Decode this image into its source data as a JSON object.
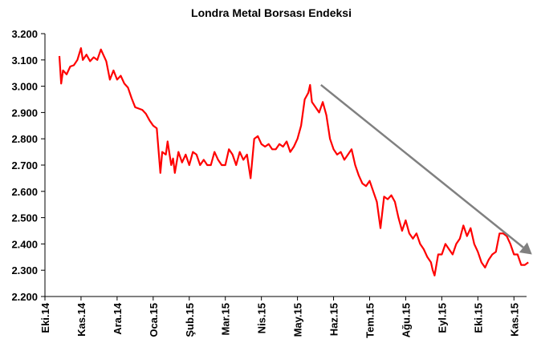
{
  "chart_data": {
    "type": "line",
    "title": "Londra Metal Borsası Endeksi",
    "xlabel": "",
    "ylabel": "",
    "ylim": [
      2200,
      3200
    ],
    "yticks": [
      "3.200",
      "3.100",
      "3.000",
      "2.900",
      "2.800",
      "2.700",
      "2.600",
      "2.500",
      "2.400",
      "2.300",
      "2.200"
    ],
    "ytick_values": [
      3200,
      3100,
      3000,
      2900,
      2800,
      2700,
      2600,
      2500,
      2400,
      2300,
      2200
    ],
    "x_categories": [
      "Eki.14",
      "Kas.14",
      "Ara.14",
      "Oca.15",
      "Şub.15",
      "Mar.15",
      "Nis.15",
      "May.15",
      "Haz.15",
      "Tem.15",
      "Ağu.15",
      "Eyl.15",
      "Eki.15",
      "Kas.15"
    ],
    "grid": false,
    "legend": "none",
    "series": [
      {
        "color": "#ff0000",
        "values": [
          [
            0.4,
            3115
          ],
          [
            0.45,
            3010
          ],
          [
            0.5,
            3060
          ],
          [
            0.6,
            3045
          ],
          [
            0.7,
            3075
          ],
          [
            0.8,
            3080
          ],
          [
            0.9,
            3100
          ],
          [
            1.0,
            3145
          ],
          [
            1.05,
            3100
          ],
          [
            1.15,
            3120
          ],
          [
            1.25,
            3095
          ],
          [
            1.35,
            3110
          ],
          [
            1.45,
            3100
          ],
          [
            1.55,
            3140
          ],
          [
            1.6,
            3125
          ],
          [
            1.7,
            3095
          ],
          [
            1.8,
            3025
          ],
          [
            1.9,
            3060
          ],
          [
            2.0,
            3025
          ],
          [
            2.1,
            3040
          ],
          [
            2.2,
            3010
          ],
          [
            2.3,
            2995
          ],
          [
            2.4,
            2955
          ],
          [
            2.5,
            2920
          ],
          [
            2.6,
            2915
          ],
          [
            2.7,
            2910
          ],
          [
            2.8,
            2895
          ],
          [
            2.9,
            2870
          ],
          [
            3.0,
            2850
          ],
          [
            3.1,
            2840
          ],
          [
            3.2,
            2670
          ],
          [
            3.25,
            2750
          ],
          [
            3.35,
            2740
          ],
          [
            3.4,
            2790
          ],
          [
            3.5,
            2700
          ],
          [
            3.55,
            2725
          ],
          [
            3.6,
            2670
          ],
          [
            3.7,
            2750
          ],
          [
            3.8,
            2710
          ],
          [
            3.9,
            2740
          ],
          [
            4.0,
            2700
          ],
          [
            4.1,
            2750
          ],
          [
            4.2,
            2740
          ],
          [
            4.3,
            2700
          ],
          [
            4.4,
            2720
          ],
          [
            4.5,
            2700
          ],
          [
            4.6,
            2700
          ],
          [
            4.7,
            2750
          ],
          [
            4.8,
            2720
          ],
          [
            4.9,
            2700
          ],
          [
            5.0,
            2700
          ],
          [
            5.1,
            2760
          ],
          [
            5.2,
            2740
          ],
          [
            5.3,
            2700
          ],
          [
            5.4,
            2750
          ],
          [
            5.5,
            2720
          ],
          [
            5.6,
            2740
          ],
          [
            5.7,
            2650
          ],
          [
            5.8,
            2800
          ],
          [
            5.9,
            2810
          ],
          [
            6.0,
            2780
          ],
          [
            6.1,
            2770
          ],
          [
            6.2,
            2780
          ],
          [
            6.3,
            2760
          ],
          [
            6.4,
            2760
          ],
          [
            6.5,
            2780
          ],
          [
            6.6,
            2770
          ],
          [
            6.7,
            2790
          ],
          [
            6.8,
            2750
          ],
          [
            6.9,
            2770
          ],
          [
            7.0,
            2800
          ],
          [
            7.1,
            2850
          ],
          [
            7.2,
            2950
          ],
          [
            7.3,
            2975
          ],
          [
            7.35,
            3005
          ],
          [
            7.4,
            2940
          ],
          [
            7.5,
            2920
          ],
          [
            7.6,
            2900
          ],
          [
            7.7,
            2940
          ],
          [
            7.8,
            2890
          ],
          [
            7.9,
            2800
          ],
          [
            8.0,
            2760
          ],
          [
            8.1,
            2740
          ],
          [
            8.2,
            2750
          ],
          [
            8.3,
            2720
          ],
          [
            8.4,
            2740
          ],
          [
            8.5,
            2760
          ],
          [
            8.6,
            2700
          ],
          [
            8.7,
            2660
          ],
          [
            8.8,
            2630
          ],
          [
            8.9,
            2620
          ],
          [
            9.0,
            2640
          ],
          [
            9.1,
            2600
          ],
          [
            9.2,
            2560
          ],
          [
            9.3,
            2460
          ],
          [
            9.4,
            2580
          ],
          [
            9.5,
            2570
          ],
          [
            9.6,
            2585
          ],
          [
            9.7,
            2560
          ],
          [
            9.8,
            2500
          ],
          [
            9.9,
            2450
          ],
          [
            10.0,
            2490
          ],
          [
            10.1,
            2440
          ],
          [
            10.2,
            2420
          ],
          [
            10.3,
            2440
          ],
          [
            10.4,
            2400
          ],
          [
            10.5,
            2380
          ],
          [
            10.6,
            2350
          ],
          [
            10.7,
            2330
          ],
          [
            10.75,
            2300
          ],
          [
            10.8,
            2280
          ],
          [
            10.9,
            2360
          ],
          [
            11.0,
            2360
          ],
          [
            11.1,
            2400
          ],
          [
            11.2,
            2380
          ],
          [
            11.3,
            2360
          ],
          [
            11.4,
            2400
          ],
          [
            11.5,
            2420
          ],
          [
            11.6,
            2470
          ],
          [
            11.7,
            2430
          ],
          [
            11.8,
            2460
          ],
          [
            11.9,
            2400
          ],
          [
            12.0,
            2370
          ],
          [
            12.1,
            2330
          ],
          [
            12.2,
            2310
          ],
          [
            12.3,
            2340
          ],
          [
            12.4,
            2360
          ],
          [
            12.5,
            2370
          ],
          [
            12.6,
            2440
          ],
          [
            12.7,
            2440
          ],
          [
            12.8,
            2430
          ],
          [
            12.9,
            2400
          ],
          [
            13.0,
            2360
          ],
          [
            13.1,
            2360
          ],
          [
            13.2,
            2320
          ],
          [
            13.3,
            2320
          ],
          [
            13.4,
            2330
          ]
        ]
      }
    ],
    "annotations": [
      {
        "type": "arrow",
        "from": [
          7.65,
          3005
        ],
        "to": [
          13.5,
          2360
        ],
        "color": "#808080"
      }
    ]
  }
}
